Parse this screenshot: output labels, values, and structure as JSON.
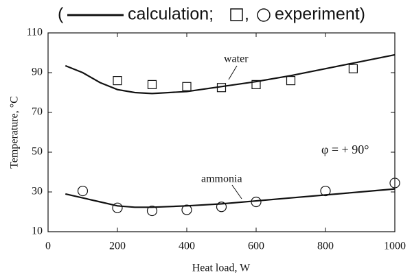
{
  "chart_data": {
    "type": "line",
    "title_parts": [
      "(",
      "calculation;",
      ",",
      "experiment)"
    ],
    "xlabel": "Heat load, W",
    "ylabel": "Temperature, °C",
    "xlim": [
      0,
      1000
    ],
    "ylim": [
      10,
      110
    ],
    "xticks": [
      0,
      200,
      400,
      600,
      800,
      1000
    ],
    "yticks": [
      10,
      30,
      50,
      70,
      90,
      110
    ],
    "annotations": [
      "water",
      "ammonia",
      "φ = + 90°"
    ],
    "series": [
      {
        "style": "line",
        "color": "#111111",
        "x": [
          50,
          100,
          150,
          200,
          250,
          300,
          400,
          500,
          600,
          700,
          800,
          900,
          1000
        ],
        "values": [
          93.5,
          90,
          85,
          81.5,
          80,
          79.5,
          80.5,
          83,
          85.5,
          88.5,
          92,
          95.5,
          99
        ]
      },
      {
        "style": "square",
        "color": "#111111",
        "x": [
          200,
          300,
          400,
          500,
          600,
          700,
          880
        ],
        "values": [
          86,
          84,
          83,
          82.5,
          84,
          86,
          92
        ]
      },
      {
        "style": "line",
        "color": "#111111",
        "x": [
          50,
          100,
          150,
          200,
          250,
          300,
          400,
          500,
          600,
          700,
          800,
          900,
          1000
        ],
        "values": [
          29,
          27,
          25,
          23,
          22.3,
          22.3,
          23,
          24,
          25.5,
          27,
          28.5,
          30,
          31.5
        ]
      },
      {
        "style": "circle",
        "color": "#111111",
        "x": [
          100,
          200,
          300,
          400,
          500,
          600,
          800,
          1000
        ],
        "values": [
          30.5,
          22,
          20.5,
          21,
          22.5,
          25,
          30.5,
          34.5
        ]
      }
    ]
  }
}
